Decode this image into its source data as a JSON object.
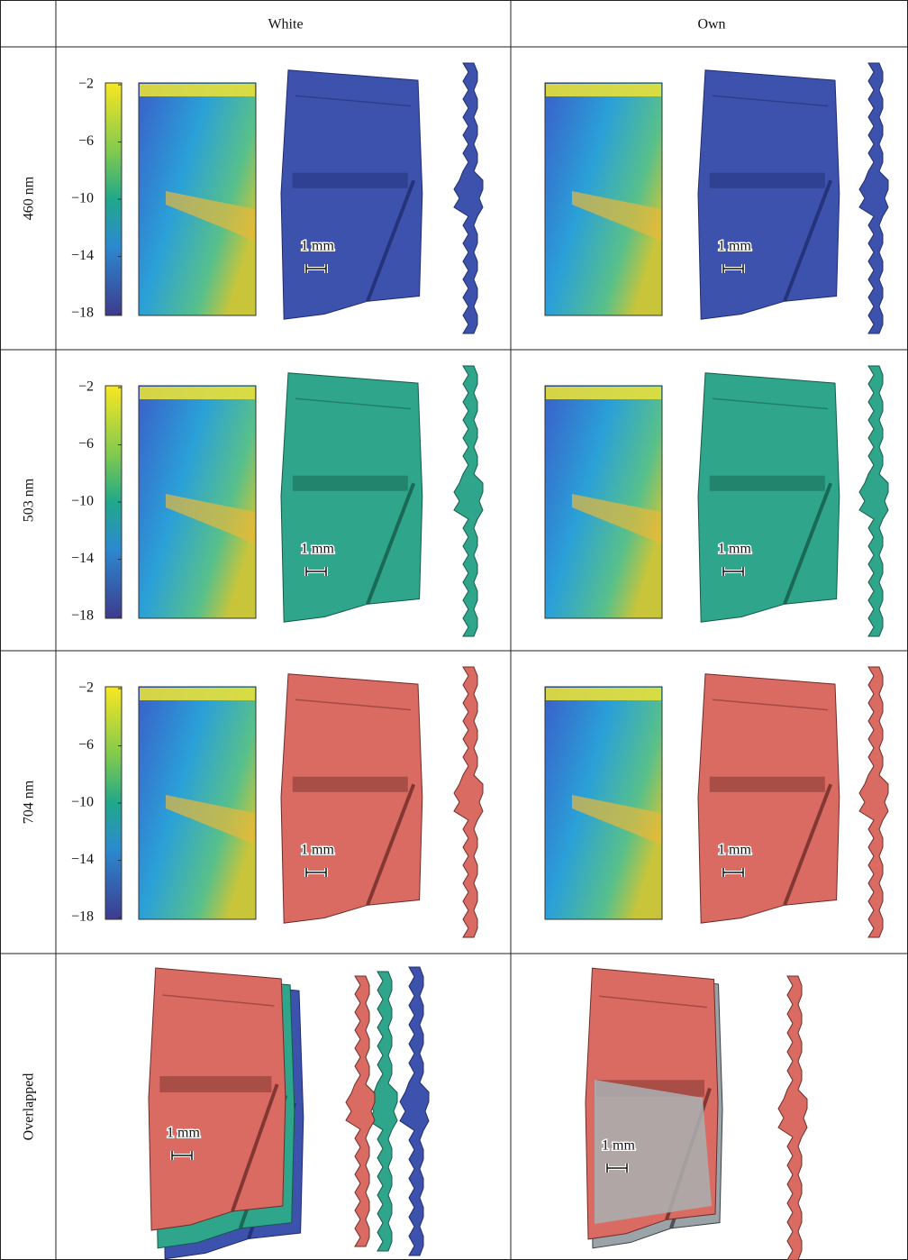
{
  "header": {
    "columns": [
      "White",
      "Own"
    ]
  },
  "rows": [
    {
      "label": "460 nm"
    },
    {
      "label": "503 nm"
    },
    {
      "label": "704 nm"
    },
    {
      "label": "Overlapped"
    }
  ],
  "colorbar_ticks": [
    "−2",
    "−6",
    "−10",
    "−14",
    "−18"
  ],
  "scale_bar": "1 mm"
}
